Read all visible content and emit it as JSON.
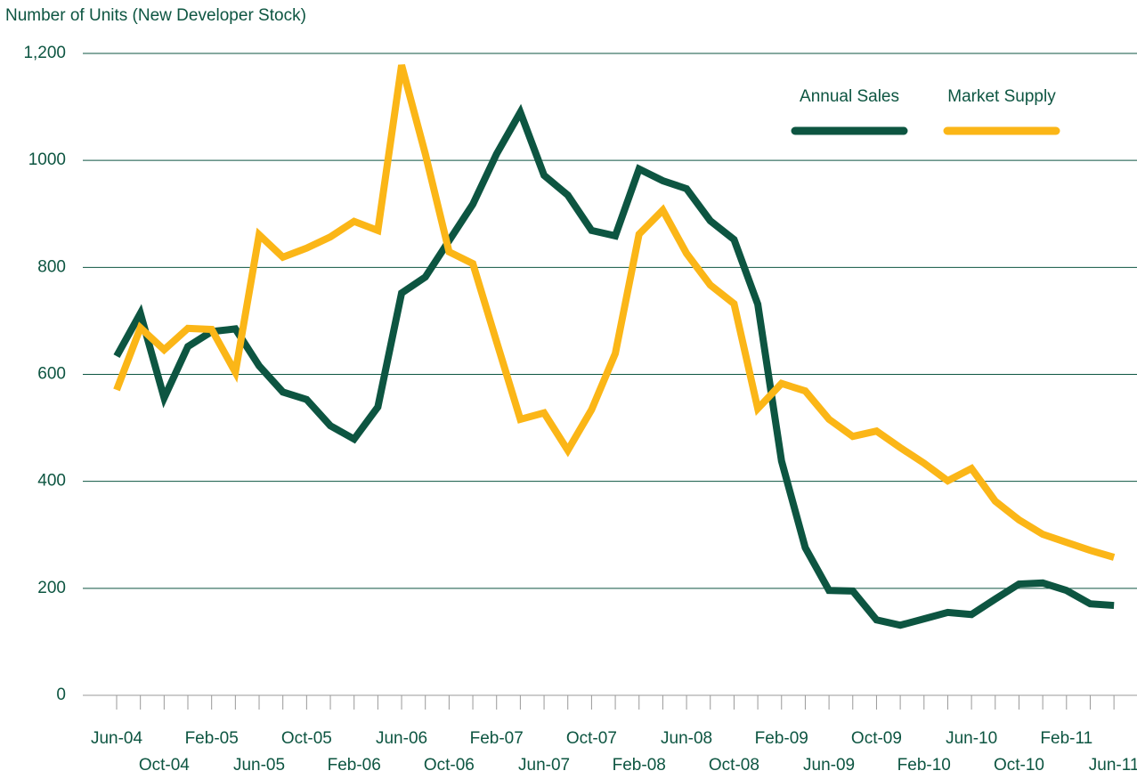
{
  "chart_data": {
    "type": "line",
    "title": "Number of Units (New Developer Stock)",
    "categories": [
      "Jun-04",
      null,
      "Oct-04",
      null,
      "Feb-05",
      null,
      "Jun-05",
      null,
      "Oct-05",
      null,
      "Feb-06",
      null,
      "Jun-06",
      null,
      "Oct-06",
      null,
      "Feb-07",
      null,
      "Jun-07",
      null,
      "Oct-07",
      null,
      "Feb-08",
      null,
      "Jun-08",
      null,
      "Oct-08",
      null,
      "Feb-09",
      null,
      "Jun-09",
      null,
      "Oct-09",
      null,
      "Feb-10",
      null,
      "Jun-10",
      null,
      "Oct-10",
      null,
      "Feb-11",
      null,
      "Jun-11"
    ],
    "series": [
      {
        "name": "Annual Sales",
        "color": "#0d5541",
        "values": [
          634,
          714,
          556,
          652,
          680,
          685,
          616,
          567,
          553,
          504,
          479,
          539,
          752,
          782,
          850,
          918,
          1012,
          1090,
          972,
          935,
          869,
          859,
          984,
          962,
          947,
          887,
          852,
          731,
          438,
          276,
          196,
          195,
          141,
          131,
          143,
          155,
          151,
          180,
          208,
          210,
          196,
          171,
          168
        ]
      },
      {
        "name": "Market Supply",
        "color": "#fbb617",
        "values": [
          571,
          687,
          646,
          686,
          684,
          604,
          861,
          819,
          836,
          857,
          886,
          869,
          1178,
          1012,
          829,
          807,
          661,
          516,
          528,
          458,
          534,
          639,
          862,
          907,
          826,
          767,
          732,
          536,
          583,
          569,
          516,
          484,
          494,
          463,
          434,
          401,
          424,
          363,
          328,
          301,
          286,
          271,
          258
        ]
      }
    ],
    "ylim": [
      0,
      1200
    ],
    "yticks": [
      0,
      200,
      400,
      600,
      800,
      1000,
      {
        "value": 1200,
        "label": "1,200"
      }
    ],
    "grid": true,
    "legend": "top-right"
  }
}
